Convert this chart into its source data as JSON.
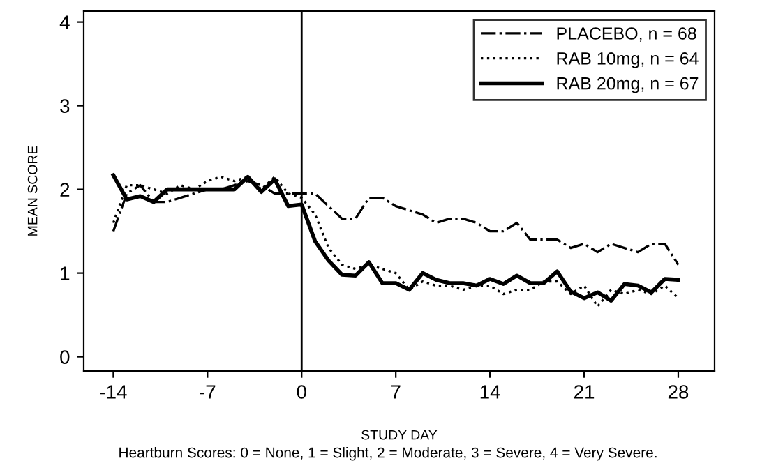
{
  "chart_data": {
    "type": "line",
    "xlabel": "STUDY DAY",
    "ylabel": "MEAN SCORE",
    "annotations": [
      "Heartburn Scores: 0 = None, 1 = Slight, 2 = Moderate, 3 = Severe, 4 = Very Severe."
    ],
    "x": [
      -14,
      -13,
      -12,
      -11,
      -10,
      -9,
      -8,
      -7,
      -6,
      -5,
      -4,
      -3,
      -2,
      -1,
      0,
      1,
      2,
      3,
      4,
      5,
      6,
      7,
      8,
      9,
      10,
      11,
      12,
      13,
      14,
      15,
      16,
      17,
      18,
      19,
      20,
      21,
      22,
      23,
      24,
      25,
      26,
      27,
      28
    ],
    "series": [
      {
        "name": "PLACEBO, n = 68",
        "color": "#000000",
        "line_style": "dashdot",
        "values": [
          1.5,
          1.95,
          2.05,
          1.85,
          1.85,
          1.9,
          1.95,
          2.0,
          2.0,
          2.05,
          2.1,
          2.05,
          1.95,
          1.95,
          1.95,
          1.95,
          1.8,
          1.65,
          1.65,
          1.9,
          1.9,
          1.8,
          1.75,
          1.7,
          1.6,
          1.65,
          1.65,
          1.6,
          1.5,
          1.5,
          1.6,
          1.4,
          1.4,
          1.4,
          1.3,
          1.35,
          1.25,
          1.35,
          1.3,
          1.25,
          1.35,
          1.35,
          1.1
        ]
      },
      {
        "name": "RAB 10mg, n = 64",
        "color": "#000000",
        "line_style": "dotted",
        "values": [
          1.6,
          2.05,
          2.05,
          2.0,
          1.95,
          2.05,
          2.0,
          2.1,
          2.15,
          2.1,
          2.15,
          2.0,
          2.15,
          1.95,
          1.9,
          1.7,
          1.3,
          1.1,
          1.05,
          1.1,
          1.05,
          1.0,
          0.8,
          0.9,
          0.85,
          0.85,
          0.8,
          0.85,
          0.85,
          0.75,
          0.8,
          0.8,
          0.9,
          0.9,
          0.75,
          0.85,
          0.6,
          0.8,
          0.75,
          0.8,
          0.75,
          0.85,
          0.7
        ]
      },
      {
        "name": "RAB 20mg, n = 67",
        "color": "#000000",
        "line_style": "solid",
        "values": [
          2.17,
          1.88,
          1.92,
          1.85,
          2.0,
          2.0,
          2.0,
          2.0,
          2.0,
          2.0,
          2.15,
          1.97,
          2.12,
          1.8,
          1.82,
          1.38,
          1.15,
          0.98,
          0.97,
          1.13,
          0.88,
          0.88,
          0.8,
          1.0,
          0.92,
          0.88,
          0.88,
          0.85,
          0.93,
          0.87,
          0.97,
          0.88,
          0.88,
          1.02,
          0.78,
          0.7,
          0.77,
          0.67,
          0.87,
          0.85,
          0.77,
          0.93,
          0.92
        ]
      }
    ],
    "xlim": [
      -16.2,
      30.7
    ],
    "ylim": [
      -0.17,
      4.13
    ],
    "xticks": [
      -14,
      -7,
      0,
      7,
      14,
      21,
      28
    ],
    "yticks": [
      0,
      1,
      2,
      3,
      4
    ],
    "ref_lines": [
      {
        "axis": "x",
        "value": 0,
        "color": "#000000"
      }
    ],
    "grid": false,
    "legend": "top right",
    "marker": "none"
  }
}
